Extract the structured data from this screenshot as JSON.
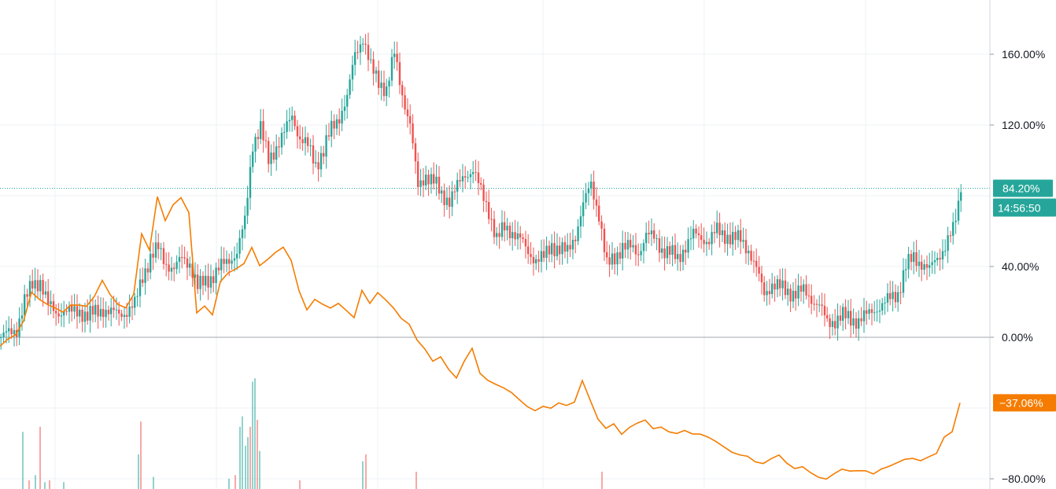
{
  "chart_data": {
    "type": "line",
    "y_axis": {
      "unit": "%",
      "ylim": [
        -80,
        190
      ],
      "ticks": [
        "160.00%",
        "120.00%",
        "40.00%",
        "0.00%",
        "−80.00%"
      ],
      "tick_values": [
        160,
        120,
        40,
        0,
        -80
      ],
      "position": "right"
    },
    "grid": true,
    "baseline_value": 0,
    "series": [
      {
        "style": "candlestick",
        "color_up": "#26a69a",
        "color_down": "#ef5350",
        "last_value_label": "84.20%",
        "last_value": 84.2,
        "countdown_label": "14:56:50",
        "points": [
          [
            0,
            0
          ],
          [
            10,
            2
          ],
          [
            20,
            5
          ],
          [
            30,
            20
          ],
          [
            40,
            30
          ],
          [
            50,
            32
          ],
          [
            60,
            18
          ],
          [
            70,
            14
          ],
          [
            80,
            15
          ],
          [
            90,
            14
          ],
          [
            100,
            15
          ],
          [
            110,
            12
          ],
          [
            120,
            14
          ],
          [
            130,
            16
          ],
          [
            140,
            14
          ],
          [
            150,
            13
          ],
          [
            160,
            15
          ],
          [
            170,
            18
          ],
          [
            180,
            35
          ],
          [
            190,
            45
          ],
          [
            200,
            50
          ],
          [
            210,
            42
          ],
          [
            220,
            38
          ],
          [
            230,
            45
          ],
          [
            240,
            42
          ],
          [
            250,
            28
          ],
          [
            260,
            32
          ],
          [
            270,
            35
          ],
          [
            280,
            40
          ],
          [
            290,
            44
          ],
          [
            300,
            48
          ],
          [
            310,
            65
          ],
          [
            320,
            110
          ],
          [
            330,
            118
          ],
          [
            340,
            100
          ],
          [
            350,
            108
          ],
          [
            360,
            115
          ],
          [
            370,
            126
          ],
          [
            380,
            112
          ],
          [
            390,
            108
          ],
          [
            400,
            98
          ],
          [
            410,
            105
          ],
          [
            420,
            118
          ],
          [
            430,
            125
          ],
          [
            440,
            135
          ],
          [
            450,
            160
          ],
          [
            460,
            170
          ],
          [
            470,
            152
          ],
          [
            480,
            145
          ],
          [
            490,
            140
          ],
          [
            500,
            160
          ],
          [
            510,
            138
          ],
          [
            520,
            120
          ],
          [
            530,
            85
          ],
          [
            540,
            92
          ],
          [
            550,
            88
          ],
          [
            560,
            80
          ],
          [
            570,
            78
          ],
          [
            580,
            85
          ],
          [
            590,
            92
          ],
          [
            600,
            95
          ],
          [
            610,
            82
          ],
          [
            620,
            72
          ],
          [
            630,
            55
          ],
          [
            640,
            62
          ],
          [
            650,
            60
          ],
          [
            660,
            55
          ],
          [
            670,
            48
          ],
          [
            680,
            44
          ],
          [
            690,
            45
          ],
          [
            700,
            52
          ],
          [
            710,
            50
          ],
          [
            720,
            48
          ],
          [
            730,
            58
          ],
          [
            740,
            75
          ],
          [
            750,
            86
          ],
          [
            760,
            70
          ],
          [
            770,
            40
          ],
          [
            780,
            45
          ],
          [
            790,
            52
          ],
          [
            800,
            50
          ],
          [
            810,
            48
          ],
          [
            820,
            58
          ],
          [
            830,
            56
          ],
          [
            840,
            50
          ],
          [
            850,
            48
          ],
          [
            860,
            44
          ],
          [
            870,
            52
          ],
          [
            880,
            58
          ],
          [
            890,
            56
          ],
          [
            900,
            55
          ],
          [
            910,
            60
          ],
          [
            920,
            58
          ],
          [
            930,
            56
          ],
          [
            940,
            55
          ],
          [
            950,
            50
          ],
          [
            960,
            38
          ],
          [
            970,
            25
          ],
          [
            980,
            30
          ],
          [
            990,
            28
          ],
          [
            1000,
            26
          ],
          [
            1010,
            25
          ],
          [
            1020,
            26
          ],
          [
            1030,
            22
          ],
          [
            1040,
            18
          ],
          [
            1050,
            8
          ],
          [
            1060,
            10
          ],
          [
            1070,
            12
          ],
          [
            1080,
            10
          ],
          [
            1090,
            10
          ],
          [
            1100,
            12
          ],
          [
            1110,
            16
          ],
          [
            1120,
            18
          ],
          [
            1130,
            22
          ],
          [
            1140,
            25
          ],
          [
            1150,
            40
          ],
          [
            1160,
            45
          ],
          [
            1170,
            42
          ],
          [
            1180,
            38
          ],
          [
            1190,
            45
          ],
          [
            1200,
            52
          ],
          [
            1210,
            60
          ],
          [
            1220,
            82
          ]
        ]
      },
      {
        "style": "line",
        "color": "#f57c00",
        "last_value_label": "−37.06%",
        "last_value": -37.06,
        "points": [
          [
            0,
            -5
          ],
          [
            10,
            -2
          ],
          [
            20,
            0
          ],
          [
            30,
            8
          ],
          [
            40,
            25
          ],
          [
            50,
            22
          ],
          [
            60,
            20
          ],
          [
            70,
            18
          ],
          [
            80,
            15
          ],
          [
            90,
            18
          ],
          [
            100,
            17
          ],
          [
            110,
            16
          ],
          [
            120,
            22
          ],
          [
            130,
            32
          ],
          [
            140,
            25
          ],
          [
            150,
            20
          ],
          [
            160,
            18
          ],
          [
            170,
            25
          ],
          [
            180,
            58
          ],
          [
            190,
            48
          ],
          [
            200,
            78
          ],
          [
            210,
            65
          ],
          [
            220,
            75
          ],
          [
            230,
            80
          ],
          [
            240,
            72
          ],
          [
            250,
            15
          ],
          [
            260,
            18
          ],
          [
            270,
            12
          ],
          [
            280,
            30
          ],
          [
            290,
            35
          ],
          [
            300,
            38
          ],
          [
            310,
            42
          ],
          [
            320,
            52
          ],
          [
            330,
            42
          ],
          [
            340,
            45
          ],
          [
            350,
            48
          ],
          [
            360,
            50
          ],
          [
            370,
            42
          ],
          [
            380,
            25
          ],
          [
            390,
            15
          ],
          [
            400,
            22
          ],
          [
            410,
            20
          ],
          [
            420,
            18
          ],
          [
            430,
            20
          ],
          [
            440,
            15
          ],
          [
            450,
            10
          ],
          [
            460,
            25
          ],
          [
            470,
            18
          ],
          [
            480,
            25
          ],
          [
            490,
            22
          ],
          [
            500,
            18
          ],
          [
            510,
            12
          ],
          [
            520,
            8
          ],
          [
            530,
            -2
          ],
          [
            540,
            -8
          ],
          [
            550,
            -15
          ],
          [
            560,
            -12
          ],
          [
            570,
            -18
          ],
          [
            580,
            -22
          ],
          [
            590,
            -12
          ],
          [
            600,
            -5
          ],
          [
            610,
            -20
          ],
          [
            620,
            -25
          ],
          [
            630,
            -28
          ],
          [
            640,
            -30
          ],
          [
            650,
            -32
          ],
          [
            660,
            -35
          ],
          [
            670,
            -38
          ],
          [
            680,
            -40
          ],
          [
            690,
            -38
          ],
          [
            700,
            -40
          ],
          [
            710,
            -38
          ],
          [
            720,
            -40
          ],
          [
            730,
            -38
          ],
          [
            740,
            -25
          ],
          [
            750,
            -35
          ],
          [
            760,
            -45
          ],
          [
            770,
            -50
          ],
          [
            780,
            -48
          ],
          [
            790,
            -55
          ],
          [
            800,
            -52
          ],
          [
            810,
            -50
          ],
          [
            820,
            -48
          ],
          [
            830,
            -52
          ],
          [
            840,
            -50
          ],
          [
            850,
            -52
          ],
          [
            860,
            -53
          ],
          [
            870,
            -52
          ],
          [
            880,
            -55
          ],
          [
            890,
            -56
          ],
          [
            900,
            -58
          ],
          [
            910,
            -60
          ],
          [
            920,
            -62
          ],
          [
            930,
            -64
          ],
          [
            940,
            -65
          ],
          [
            950,
            -66
          ],
          [
            960,
            -70
          ],
          [
            970,
            -72
          ],
          [
            980,
            -70
          ],
          [
            990,
            -68
          ],
          [
            1000,
            -72
          ],
          [
            1010,
            -74
          ],
          [
            1020,
            -72
          ],
          [
            1030,
            -75
          ],
          [
            1040,
            -78
          ],
          [
            1050,
            -80
          ],
          [
            1060,
            -78
          ],
          [
            1070,
            -76
          ],
          [
            1080,
            -77
          ],
          [
            1090,
            -76
          ],
          [
            1100,
            -75
          ],
          [
            1110,
            -76
          ],
          [
            1120,
            -73
          ],
          [
            1130,
            -72
          ],
          [
            1140,
            -71
          ],
          [
            1150,
            -70
          ],
          [
            1160,
            -70
          ],
          [
            1170,
            -71
          ],
          [
            1180,
            -68
          ],
          [
            1190,
            -65
          ],
          [
            1200,
            -55
          ],
          [
            1210,
            -52
          ],
          [
            1220,
            -37.06
          ]
        ]
      }
    ],
    "volume_bars": [
      {
        "x": 28,
        "v": 0.33,
        "c": "up"
      },
      {
        "x": 36,
        "v": 0.05,
        "c": "down"
      },
      {
        "x": 44,
        "v": 0.08,
        "c": "up"
      },
      {
        "x": 50,
        "v": 0.36,
        "c": "down"
      },
      {
        "x": 56,
        "v": 0.04,
        "c": "up"
      },
      {
        "x": 62,
        "v": 0.05,
        "c": "down"
      },
      {
        "x": 80,
        "v": 0.04,
        "c": "up"
      },
      {
        "x": 175,
        "v": 0.2,
        "c": "up"
      },
      {
        "x": 178,
        "v": 0.39,
        "c": "down"
      },
      {
        "x": 194,
        "v": 0.07,
        "c": "up"
      },
      {
        "x": 290,
        "v": 0.06,
        "c": "up"
      },
      {
        "x": 298,
        "v": 0.08,
        "c": "down"
      },
      {
        "x": 304,
        "v": 0.36,
        "c": "up"
      },
      {
        "x": 307,
        "v": 0.42,
        "c": "up"
      },
      {
        "x": 311,
        "v": 0.25,
        "c": "up"
      },
      {
        "x": 314,
        "v": 0.3,
        "c": "up"
      },
      {
        "x": 317,
        "v": 0.36,
        "c": "down"
      },
      {
        "x": 320,
        "v": 0.62,
        "c": "up"
      },
      {
        "x": 323,
        "v": 0.64,
        "c": "up"
      },
      {
        "x": 326,
        "v": 0.4,
        "c": "down"
      },
      {
        "x": 329,
        "v": 0.22,
        "c": "up"
      },
      {
        "x": 380,
        "v": 0.05,
        "c": "down"
      },
      {
        "x": 460,
        "v": 0.16,
        "c": "up"
      },
      {
        "x": 464,
        "v": 0.2,
        "c": "down"
      },
      {
        "x": 528,
        "v": 0.1,
        "c": "down"
      },
      {
        "x": 764,
        "v": 0.1,
        "c": "down"
      }
    ]
  }
}
